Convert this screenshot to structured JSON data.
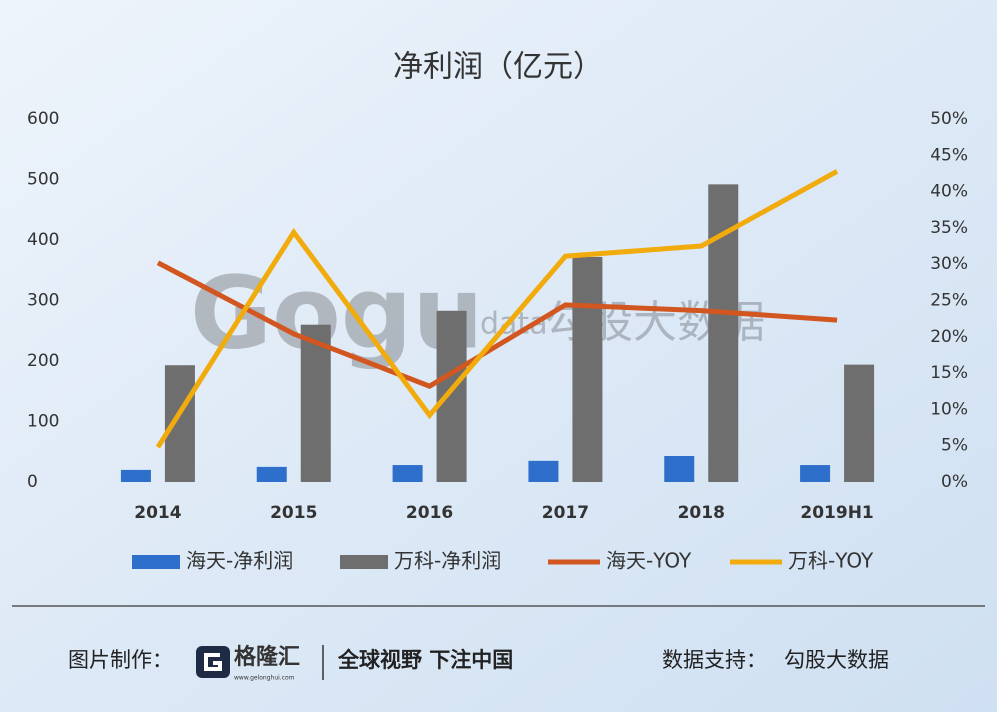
{
  "chart_data": {
    "type": "combo",
    "title": "净利润（亿元）",
    "categories": [
      "2014",
      "2015",
      "2016",
      "2017",
      "2018",
      "2019H1"
    ],
    "series": [
      {
        "name": "海天-净利润",
        "type": "bar",
        "color": "#2e6fcb",
        "values": [
          20,
          25,
          28,
          35,
          43,
          28
        ]
      },
      {
        "name": "万科-净利润",
        "type": "bar",
        "color": "#6e6e6e",
        "values": [
          193,
          260,
          283,
          372,
          492,
          194
        ]
      },
      {
        "name": "海天-YOY",
        "type": "line",
        "axis": "y2",
        "color": "#d2561f",
        "values": [
          30.2,
          20.4,
          13.2,
          24.4,
          23.6,
          22.3
        ]
      },
      {
        "name": "万科-YOY",
        "type": "line",
        "axis": "y2",
        "color": "#f2ab0c",
        "values": [
          4.8,
          34.4,
          9.2,
          31.1,
          32.5,
          42.8
        ]
      }
    ],
    "ylim": [
      0,
      600
    ],
    "yticks": [
      0,
      100,
      200,
      300,
      400,
      500,
      600
    ],
    "y2lim": [
      0,
      50
    ],
    "y2ticks": [
      {
        "value": 0,
        "label": "0%"
      },
      {
        "value": 5,
        "label": "5%"
      },
      {
        "value": 10,
        "label": "10%"
      },
      {
        "value": 15,
        "label": "15%"
      },
      {
        "value": 20,
        "label": "20%"
      },
      {
        "value": 25,
        "label": "25%"
      },
      {
        "value": 30,
        "label": "30%"
      },
      {
        "value": 35,
        "label": "35%"
      },
      {
        "value": 40,
        "label": "40%"
      },
      {
        "value": 45,
        "label": "45%"
      },
      {
        "value": 50,
        "label": "50%"
      }
    ],
    "grid": false
  },
  "watermark": {
    "logo": "Gogu",
    "small": "data",
    "name": "勾股大数据"
  },
  "footer": {
    "made_by_label": "图片制作：",
    "brand": "格隆汇",
    "brand_url": "www.gelonghui.com",
    "slogan": "全球视野 下注中国",
    "support_label": "数据支持：",
    "support": "勾股大数据"
  }
}
